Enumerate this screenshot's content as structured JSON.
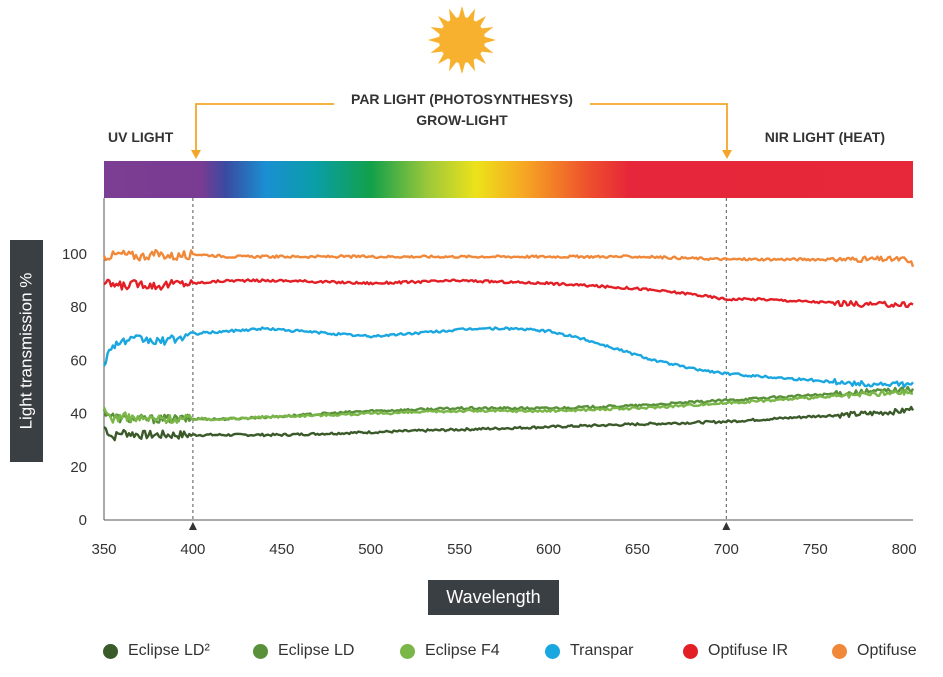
{
  "chart_data": {
    "type": "line",
    "xlabel": "Wavelength",
    "ylabel": "Light transmission %",
    "xlim": [
      350,
      805
    ],
    "ylim": [
      0,
      100
    ],
    "x_ticks": [
      "350",
      "400",
      "450",
      "500",
      "550",
      "600",
      "650",
      "700",
      "750",
      "800"
    ],
    "y_ticks": [
      "0",
      "20",
      "40",
      "60",
      "80",
      "100"
    ],
    "annotations": {
      "par": "PAR LIGHT (PHOTOSYNTHESYS)",
      "grow": "GROW-LIGHT",
      "uv": "UV LIGHT",
      "nir": "NIR LIGHT (HEAT)"
    },
    "markers": [
      400,
      700
    ],
    "series": [
      {
        "name": "Eclipse LD²",
        "color": "#3b5a2a",
        "x": [
          350,
          355,
          360,
          370,
          380,
          390,
          400,
          420,
          450,
          500,
          550,
          600,
          650,
          700,
          750,
          780,
          800,
          805
        ],
        "y": [
          35,
          31,
          33,
          32,
          32,
          32,
          32,
          32,
          32,
          33,
          34,
          35,
          36,
          37,
          39,
          40,
          41,
          42
        ]
      },
      {
        "name": "Eclipse LD",
        "color": "#58913a",
        "x": [
          350,
          355,
          360,
          370,
          380,
          400,
          420,
          450,
          500,
          550,
          600,
          650,
          700,
          750,
          800,
          805
        ],
        "y": [
          41,
          39,
          38,
          38,
          38,
          38,
          38,
          39,
          41,
          42,
          42,
          43,
          45,
          47,
          49,
          49
        ]
      },
      {
        "name": "Eclipse F4",
        "color": "#7ab648",
        "x": [
          350,
          355,
          360,
          370,
          380,
          400,
          420,
          450,
          500,
          550,
          600,
          650,
          700,
          750,
          800,
          805
        ],
        "y": [
          41,
          38,
          39,
          38,
          38,
          38,
          38,
          39,
          40,
          41,
          41,
          42,
          44,
          46,
          48,
          48
        ]
      },
      {
        "name": "Transpar",
        "color": "#1aa6df",
        "x": [
          350,
          355,
          360,
          370,
          380,
          390,
          400,
          420,
          440,
          460,
          480,
          500,
          520,
          540,
          560,
          580,
          600,
          620,
          640,
          660,
          680,
          700,
          720,
          740,
          760,
          780,
          800,
          805
        ],
        "y": [
          59,
          66,
          67,
          68,
          67,
          68,
          70,
          71,
          72,
          71,
          70,
          69,
          70,
          71,
          72,
          72,
          71,
          68,
          64,
          60,
          57,
          55,
          54,
          53,
          52,
          51,
          51,
          51
        ]
      },
      {
        "name": "Optifuse IR",
        "color": "#e31f26",
        "x": [
          350,
          360,
          370,
          380,
          390,
          400,
          420,
          450,
          500,
          550,
          600,
          650,
          680,
          700,
          720,
          750,
          780,
          800,
          805
        ],
        "y": [
          89,
          88,
          89,
          88,
          89,
          89,
          90,
          90,
          89,
          90,
          89,
          87,
          85,
          83,
          83,
          82,
          81,
          81,
          81
        ]
      },
      {
        "name": "Optifuse",
        "color": "#f0883a",
        "x": [
          350,
          360,
          370,
          380,
          390,
          400,
          420,
          450,
          500,
          550,
          600,
          650,
          700,
          750,
          780,
          800,
          805
        ],
        "y": [
          99,
          100,
          99,
          100,
          99,
          100,
          99,
          99,
          99,
          99,
          99,
          99,
          98,
          98,
          98,
          98,
          96
        ]
      }
    ]
  },
  "legend": [
    "Eclipse LD²",
    "Eclipse LD",
    "Eclipse F4",
    "Transpar",
    "Optifuse IR",
    "Optifuse"
  ]
}
